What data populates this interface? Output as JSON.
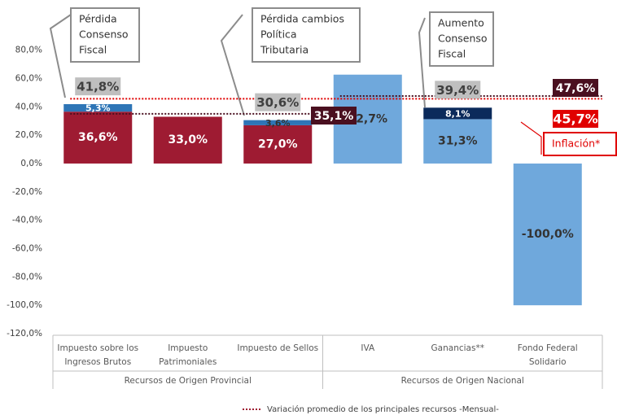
{
  "chart_data": {
    "type": "bar",
    "stacked": true,
    "categories": [
      [
        "Impuesto sobre los",
        "Ingresos Brutos"
      ],
      [
        "Impuesto",
        "Patrimoniales"
      ],
      [
        "Impuesto de Sellos"
      ],
      [
        "IVA"
      ],
      [
        "Ganancias**"
      ],
      [
        "Fondo Federal",
        "Solidario"
      ]
    ],
    "groups": [
      "Recursos de Origen Provincial",
      "Recursos de Origen Nacional"
    ],
    "series": [
      {
        "values": [
          36.6,
          33.0,
          27.0,
          62.7,
          31.3,
          -100.0
        ],
        "value_labels": [
          "36,6%",
          "33,0%",
          "27,0%",
          "62,7%",
          "31,3%",
          "-100,0%"
        ],
        "colors": [
          "#9e1b32",
          "#9e1b32",
          "#9e1b32",
          "#6fa8dc",
          "#6fa8dc",
          "#6fa8dc"
        ]
      },
      {
        "values": [
          5.3,
          null,
          3.6,
          null,
          8.1,
          null
        ],
        "value_labels": [
          "5,3%",
          null,
          "3,6%",
          null,
          "8,1%",
          null
        ],
        "colors": [
          "#2e75b6",
          null,
          "#2e75b6",
          null,
          "#0b2a5b",
          null
        ]
      }
    ],
    "totals": [
      41.8,
      null,
      30.6,
      null,
      39.4,
      null
    ],
    "total_labels": [
      "41,8%",
      null,
      "30,6%",
      null,
      "39,4%",
      null
    ],
    "reference_lines": [
      {
        "value": 35.1,
        "label": "35,1%",
        "color": "#4a1020",
        "span": [
          0,
          2
        ]
      },
      {
        "value": 47.6,
        "label": "47,6%",
        "color": "#4a1020",
        "span": [
          3,
          5
        ]
      },
      {
        "value": 45.7,
        "label": "45,7%",
        "color": "#e00000",
        "span": [
          0,
          5
        ]
      }
    ],
    "legend": "Variación promedio de los principales recursos -Mensual-",
    "annotations": [
      {
        "lines": [
          "Pérdida",
          "Consenso",
          "Fiscal"
        ]
      },
      {
        "lines": [
          "Pérdida cambios",
          "Política",
          "Tributaria"
        ]
      },
      {
        "lines": [
          "Aumento",
          "Consenso",
          "Fiscal"
        ]
      },
      {
        "lines": [
          "Inflación*"
        ]
      }
    ],
    "ylim": [
      -120,
      80
    ],
    "yticks": [
      {
        "value": -120,
        "label": "-120,0%"
      },
      {
        "value": -100,
        "label": "-100,0%"
      },
      {
        "value": -80,
        "label": "-80,0%"
      },
      {
        "value": -60,
        "label": "-60,0%"
      },
      {
        "value": -40,
        "label": "-40,0%"
      },
      {
        "value": -20,
        "label": "-20,0%"
      },
      {
        "value": 0,
        "label": "0,0%"
      },
      {
        "value": 20,
        "label": "20,0%"
      },
      {
        "value": 40,
        "label": "40,0%"
      },
      {
        "value": 60,
        "label": "60,0%"
      },
      {
        "value": 80,
        "label": "80,0%"
      }
    ]
  }
}
